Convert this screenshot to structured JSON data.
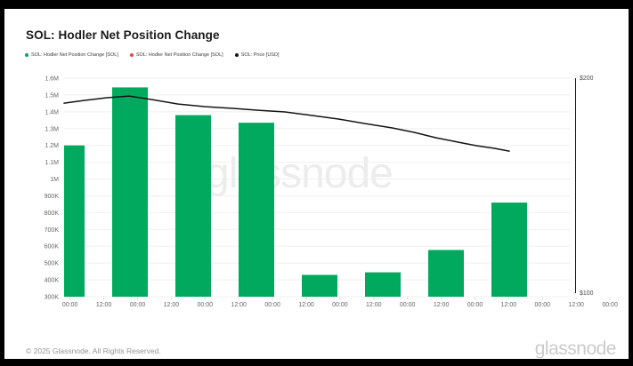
{
  "header": {
    "title": "SOL: Hodler Net Position Change"
  },
  "legend": {
    "items": [
      {
        "label": "SOL: Hodler Net Position Change [SOL]",
        "color": "#00a95d"
      },
      {
        "label": "SOL: Hodler Net Position Change [SOL]",
        "color": "#e54545"
      },
      {
        "label": "SOL: Price [USD]",
        "color": "#141414"
      }
    ]
  },
  "watermark": "glassnode",
  "footer": {
    "copyright": "© 2025 Glassnode. All Rights Reserved.",
    "brand": "glassnode"
  },
  "chart_data": {
    "type": "bar+line",
    "title": "SOL: Hodler Net Position Change",
    "x_tick_labels": [
      "00:00",
      "12:00",
      "00:00",
      "12:00",
      "00:00",
      "12:00",
      "00:00",
      "12:00",
      "00:00",
      "12:00",
      "00:00",
      "12:00",
      "00:00",
      "12:00",
      "00:00",
      "12:00",
      "00:00"
    ],
    "bars": {
      "name": "SOL: Hodler Net Position Change [SOL]",
      "color": "#00a95d",
      "values_sol": [
        1200000,
        1545000,
        1380000,
        1335000,
        430000,
        445000,
        578000,
        860000
      ]
    },
    "price_line": {
      "name": "SOL: Price [USD]",
      "color": "#141414",
      "points_frac_usd": [
        [
          0.0,
          188.1
        ],
        [
          0.04,
          189.4
        ],
        [
          0.084,
          190.6
        ],
        [
          0.127,
          191.4
        ],
        [
          0.171,
          189.8
        ],
        [
          0.223,
          187.7
        ],
        [
          0.275,
          186.5
        ],
        [
          0.328,
          185.7
        ],
        [
          0.38,
          184.8
        ],
        [
          0.432,
          184.0
        ],
        [
          0.484,
          182.4
        ],
        [
          0.537,
          180.7
        ],
        [
          0.589,
          178.6
        ],
        [
          0.641,
          176.6
        ],
        [
          0.685,
          174.5
        ],
        [
          0.728,
          172.0
        ],
        [
          0.772,
          169.9
        ],
        [
          0.807,
          168.3
        ],
        [
          0.841,
          167.1
        ],
        [
          0.871,
          165.8
        ]
      ]
    },
    "left_axis": {
      "unit": "SOL",
      "range": [
        300000,
        1600000
      ],
      "ticks": [
        {
          "label": "1.6M",
          "value": 1600000
        },
        {
          "label": "1.5M",
          "value": 1500000
        },
        {
          "label": "1.4M",
          "value": 1400000
        },
        {
          "label": "1.3M",
          "value": 1300000
        },
        {
          "label": "1.2M",
          "value": 1200000
        },
        {
          "label": "1.1M",
          "value": 1100000
        },
        {
          "label": "1M",
          "value": 1000000
        },
        {
          "label": "900K",
          "value": 900000
        },
        {
          "label": "800K",
          "value": 800000
        },
        {
          "label": "700K",
          "value": 700000
        },
        {
          "label": "600K",
          "value": 600000
        },
        {
          "label": "500K",
          "value": 500000
        },
        {
          "label": "400K",
          "value": 400000
        },
        {
          "label": "300K",
          "value": 300000
        }
      ]
    },
    "right_axis": {
      "unit": "USD",
      "range": [
        100,
        200
      ],
      "ticks": [
        {
          "label": "$200",
          "value": 200
        },
        {
          "label": "$100",
          "value": 100
        }
      ]
    },
    "grid": "horizontal",
    "legend_position": "top-left"
  }
}
